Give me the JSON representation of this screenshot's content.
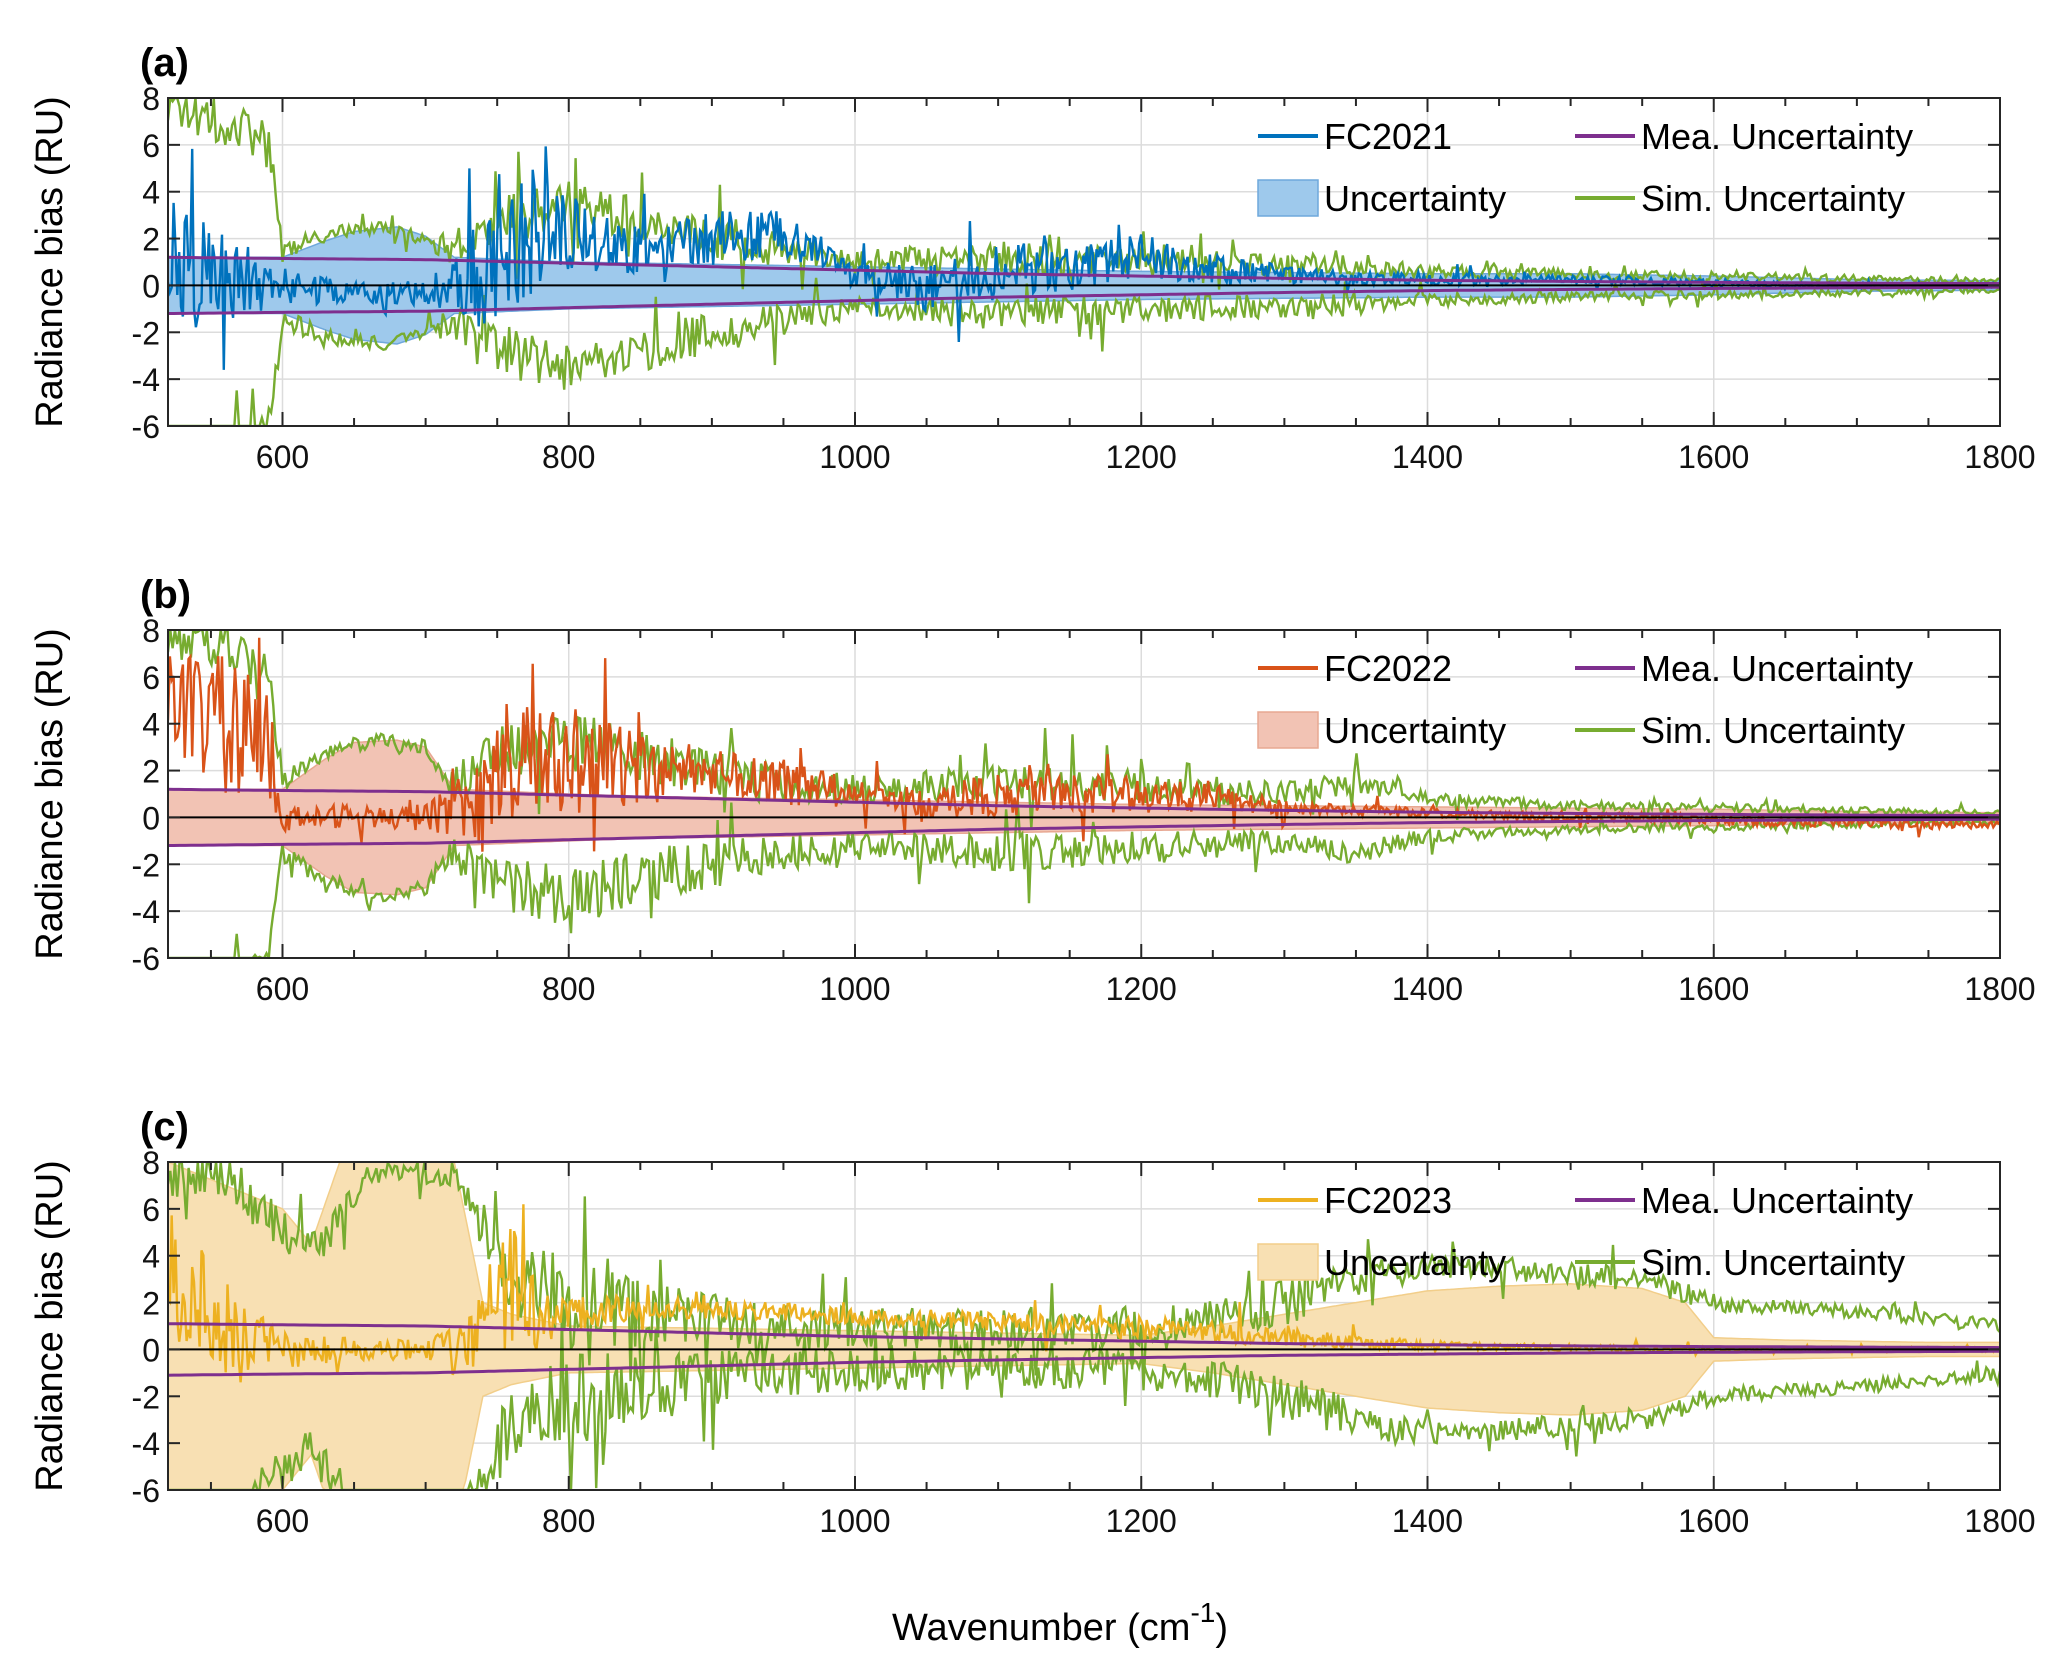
{
  "figure": {
    "xlabel_main": "Wavenumber (cm",
    "xlabel_sup": "-1",
    "xlabel_close": ")"
  },
  "chart_data": [
    {
      "type": "line",
      "panel_label": "(a)",
      "ylabel": "Radiance bias (RU)",
      "xlim": [
        520,
        1800
      ],
      "ylim": [
        -6,
        8
      ],
      "xticks": [
        600,
        800,
        1000,
        1200,
        1400,
        1600,
        1800
      ],
      "yticks": [
        -6,
        -4,
        -2,
        0,
        2,
        4,
        6,
        8
      ],
      "grid": true,
      "legend_position": "top-right",
      "colors": {
        "bias": "#0072BD",
        "band_fill": "#9EC9EC",
        "band_edge": "#6FA8DC",
        "mea": "#7E2F8E",
        "sim": "#77AC30"
      },
      "series": [
        {
          "name": "FC2021",
          "role": "bias",
          "x": [
            520,
            560,
            600,
            650,
            700,
            720,
            740,
            760,
            780,
            800,
            850,
            900,
            950,
            1000,
            1050,
            1100,
            1150,
            1200,
            1250,
            1300,
            1350,
            1400,
            1450,
            1500,
            1550,
            1600,
            1650,
            1700,
            1750,
            1800
          ],
          "y": [
            1.0,
            0.2,
            0.0,
            -0.4,
            -0.3,
            0.0,
            0.5,
            1.8,
            2.5,
            2.2,
            1.5,
            2.0,
            2.2,
            0.5,
            -0.2,
            0.6,
            0.8,
            1.2,
            0.7,
            0.5,
            0.3,
            0.3,
            0.2,
            0.3,
            0.2,
            0.1,
            0.0,
            0.0,
            0.0,
            0.0
          ],
          "amp": [
            3.0,
            2.0,
            0.8,
            0.5,
            0.5,
            1.2,
            2.5,
            3.0,
            2.5,
            1.5,
            1.0,
            1.2,
            1.0,
            0.6,
            1.0,
            1.2,
            1.0,
            1.0,
            0.6,
            0.4,
            0.3,
            0.3,
            0.2,
            0.2,
            0.2,
            0.15,
            0.15,
            0.1,
            0.1,
            0.1
          ]
        },
        {
          "name": "Uncertainty",
          "role": "band",
          "x": [
            520,
            560,
            600,
            630,
            650,
            680,
            700,
            720,
            760,
            800,
            850,
            900,
            1000,
            1100,
            1200,
            1300,
            1400,
            1500,
            1600,
            1700,
            1800
          ],
          "y": [
            1.2,
            1.2,
            1.2,
            1.9,
            2.3,
            2.5,
            2.1,
            1.2,
            1.1,
            1.0,
            0.95,
            0.9,
            0.8,
            0.7,
            0.6,
            0.55,
            0.5,
            0.5,
            0.4,
            0.25,
            0.2
          ]
        },
        {
          "name": "Mea. Uncertainty",
          "role": "mea",
          "x": [
            520,
            600,
            700,
            800,
            900,
            1000,
            1100,
            1200,
            1300,
            1400,
            1500,
            1600,
            1700,
            1800
          ],
          "y": [
            1.2,
            1.15,
            1.1,
            0.95,
            0.8,
            0.65,
            0.5,
            0.4,
            0.3,
            0.22,
            0.17,
            0.13,
            0.1,
            0.08
          ]
        },
        {
          "name": "Sim. Uncertainty",
          "role": "sim",
          "x": [
            520,
            560,
            590,
            600,
            640,
            670,
            700,
            720,
            760,
            800,
            850,
            900,
            950,
            1000,
            1100,
            1200,
            1300,
            1350,
            1400,
            1500,
            1600,
            1700,
            1800
          ],
          "y": [
            7.5,
            7.0,
            6.0,
            1.5,
            2.3,
            2.5,
            2.0,
            1.5,
            3.0,
            3.5,
            2.8,
            2.0,
            1.5,
            1.0,
            1.2,
            1.0,
            0.9,
            0.8,
            0.6,
            0.5,
            0.4,
            0.3,
            0.2
          ],
          "amp": [
            1.0,
            1.0,
            1.0,
            0.5,
            0.3,
            0.3,
            0.3,
            0.8,
            1.2,
            1.0,
            1.0,
            0.9,
            0.7,
            0.5,
            0.7,
            0.6,
            0.5,
            0.5,
            0.3,
            0.2,
            0.2,
            0.15,
            0.1
          ]
        }
      ]
    },
    {
      "type": "line",
      "panel_label": "(b)",
      "ylabel": "Radiance bias (RU)",
      "xlim": [
        520,
        1800
      ],
      "ylim": [
        -6,
        8
      ],
      "xticks": [
        600,
        800,
        1000,
        1200,
        1400,
        1600,
        1800
      ],
      "yticks": [
        -6,
        -4,
        -2,
        0,
        2,
        4,
        6,
        8
      ],
      "grid": true,
      "legend_position": "top-right",
      "colors": {
        "bias": "#D95319",
        "band_fill": "#F2C3B4",
        "band_edge": "#E8A892",
        "mea": "#7E2F8E",
        "sim": "#77AC30"
      },
      "series": [
        {
          "name": "FC2022",
          "role": "bias",
          "x": [
            520,
            560,
            590,
            600,
            650,
            700,
            740,
            760,
            780,
            800,
            850,
            900,
            950,
            1000,
            1050,
            1100,
            1150,
            1200,
            1250,
            1300,
            1350,
            1400,
            1450,
            1500,
            1550,
            1600,
            1650,
            1700,
            1750,
            1800
          ],
          "y": [
            5.0,
            4.0,
            3.0,
            0.0,
            0.0,
            0.0,
            0.5,
            2.5,
            2.5,
            2.5,
            2.0,
            2.0,
            1.5,
            1.0,
            0.6,
            1.0,
            1.0,
            1.0,
            0.8,
            0.4,
            0.3,
            0.2,
            0.1,
            0.0,
            0.0,
            -0.1,
            -0.2,
            -0.2,
            -0.3,
            -0.3
          ],
          "amp": [
            3.0,
            3.0,
            2.5,
            0.6,
            0.5,
            0.6,
            2.0,
            3.0,
            2.0,
            2.5,
            1.5,
            1.0,
            1.0,
            0.6,
            0.6,
            1.0,
            0.8,
            0.8,
            0.6,
            0.3,
            0.25,
            0.2,
            0.2,
            0.2,
            0.2,
            0.2,
            0.2,
            0.2,
            0.2,
            0.15
          ]
        },
        {
          "name": "Uncertainty",
          "role": "band",
          "x": [
            520,
            590,
            600,
            630,
            650,
            680,
            700,
            720,
            760,
            800,
            850,
            900,
            1000,
            1100,
            1200,
            1300,
            1400,
            1500,
            1600,
            1700,
            1800
          ],
          "y": [
            1.2,
            1.2,
            1.2,
            2.5,
            3.2,
            3.3,
            3.0,
            1.2,
            1.1,
            1.0,
            0.9,
            0.85,
            0.75,
            0.65,
            0.55,
            0.5,
            0.45,
            0.4,
            0.35,
            0.25,
            0.2
          ]
        },
        {
          "name": "Mea. Uncertainty",
          "role": "mea",
          "x": [
            520,
            600,
            700,
            800,
            900,
            1000,
            1100,
            1200,
            1300,
            1400,
            1500,
            1600,
            1700,
            1800
          ],
          "y": [
            1.2,
            1.15,
            1.1,
            0.95,
            0.8,
            0.65,
            0.5,
            0.4,
            0.3,
            0.22,
            0.17,
            0.13,
            0.1,
            0.08
          ]
        },
        {
          "name": "Sim. Uncertainty",
          "role": "sim",
          "x": [
            520,
            560,
            590,
            600,
            640,
            670,
            700,
            720,
            760,
            800,
            850,
            900,
            950,
            1000,
            1100,
            1200,
            1300,
            1350,
            1400,
            1500,
            1600,
            1700,
            1800
          ],
          "y": [
            7.5,
            7.5,
            6.5,
            1.5,
            3.0,
            3.3,
            3.0,
            1.5,
            3.0,
            3.5,
            2.5,
            2.0,
            1.5,
            1.2,
            1.5,
            1.3,
            1.0,
            1.5,
            0.8,
            0.5,
            0.4,
            0.3,
            0.2
          ],
          "amp": [
            1.0,
            1.0,
            1.0,
            0.5,
            0.3,
            0.3,
            0.3,
            0.8,
            1.2,
            1.5,
            1.2,
            1.0,
            0.8,
            0.6,
            0.8,
            0.7,
            0.5,
            0.5,
            0.3,
            0.2,
            0.2,
            0.15,
            0.1
          ]
        }
      ]
    },
    {
      "type": "line",
      "panel_label": "(c)",
      "ylabel": "Radiance bias (RU)",
      "xlim": [
        520,
        1800
      ],
      "ylim": [
        -6,
        8
      ],
      "xticks": [
        600,
        800,
        1000,
        1200,
        1400,
        1600,
        1800
      ],
      "yticks": [
        -6,
        -4,
        -2,
        0,
        2,
        4,
        6,
        8
      ],
      "grid": true,
      "legend_position": "top-right",
      "colors": {
        "bias": "#EDB120",
        "band_fill": "#F8E0B3",
        "band_edge": "#F2CE8A",
        "mea": "#7E2F8E",
        "sim": "#77AC30"
      },
      "series": [
        {
          "name": "FC2023",
          "role": "bias",
          "x": [
            520,
            560,
            600,
            650,
            700,
            720,
            740,
            760,
            780,
            800,
            850,
            900,
            950,
            1000,
            1050,
            1100,
            1150,
            1200,
            1250,
            1300,
            1350,
            1400,
            1450,
            1500,
            1550,
            1600,
            1650,
            1700,
            1750,
            1800
          ],
          "y": [
            3.0,
            1.0,
            0.0,
            0.0,
            0.0,
            0.0,
            1.0,
            2.5,
            1.5,
            1.5,
            1.8,
            1.7,
            1.6,
            1.4,
            1.3,
            1.2,
            1.0,
            0.9,
            0.8,
            0.5,
            0.3,
            0.2,
            0.1,
            0.1,
            0.0,
            0.0,
            0.0,
            0.0,
            0.0,
            0.0
          ],
          "amp": [
            3.0,
            2.0,
            0.8,
            0.5,
            0.5,
            1.2,
            2.5,
            3.0,
            1.5,
            0.8,
            0.5,
            0.4,
            0.4,
            0.4,
            0.4,
            0.4,
            0.4,
            0.5,
            0.5,
            0.4,
            0.3,
            0.2,
            0.15,
            0.15,
            0.15,
            0.1,
            0.1,
            0.1,
            0.1,
            0.1
          ]
        },
        {
          "name": "Uncertainty",
          "role": "band",
          "x": [
            520,
            560,
            600,
            620,
            640,
            660,
            680,
            700,
            720,
            740,
            760,
            800,
            900,
            1000,
            1100,
            1200,
            1250,
            1300,
            1350,
            1400,
            1450,
            1500,
            1550,
            1580,
            1600,
            1650,
            1700,
            1750,
            1800
          ],
          "y": [
            8.0,
            7.0,
            6.0,
            4.5,
            8.0,
            8.0,
            8.0,
            8.0,
            8.0,
            2.0,
            1.5,
            1.0,
            0.9,
            0.8,
            0.7,
            0.6,
            1.0,
            1.5,
            2.0,
            2.5,
            2.7,
            2.8,
            2.6,
            2.0,
            0.5,
            0.4,
            0.35,
            0.3,
            0.3
          ]
        },
        {
          "name": "Mea. Uncertainty",
          "role": "mea",
          "x": [
            520,
            600,
            700,
            800,
            900,
            1000,
            1100,
            1200,
            1300,
            1400,
            1500,
            1600,
            1700,
            1800
          ],
          "y": [
            1.1,
            1.05,
            1.0,
            0.85,
            0.7,
            0.55,
            0.45,
            0.35,
            0.25,
            0.2,
            0.15,
            0.12,
            0.1,
            0.08
          ]
        },
        {
          "name": "Sim. Uncertainty",
          "role": "sim",
          "x": [
            520,
            560,
            600,
            620,
            640,
            660,
            700,
            720,
            760,
            800,
            850,
            900,
            950,
            1000,
            1100,
            1200,
            1250,
            1300,
            1350,
            1400,
            1450,
            1500,
            1550,
            1600,
            1650,
            1700,
            1750,
            1800
          ],
          "y": [
            7.5,
            7.5,
            5.0,
            4.0,
            6.0,
            7.5,
            7.5,
            7.5,
            3.0,
            2.0,
            1.5,
            1.2,
            1.0,
            0.9,
            0.8,
            0.8,
            1.2,
            2.0,
            3.0,
            3.5,
            3.5,
            3.2,
            3.0,
            2.0,
            1.8,
            1.6,
            1.3,
            1.0
          ],
          "amp": [
            1.0,
            1.0,
            1.0,
            1.0,
            1.0,
            0.5,
            0.5,
            0.5,
            1.5,
            2.0,
            1.5,
            1.2,
            1.0,
            0.9,
            0.9,
            0.9,
            0.9,
            1.0,
            0.8,
            0.5,
            0.5,
            0.5,
            0.5,
            0.4,
            0.3,
            0.3,
            0.3,
            0.3
          ]
        }
      ]
    }
  ]
}
